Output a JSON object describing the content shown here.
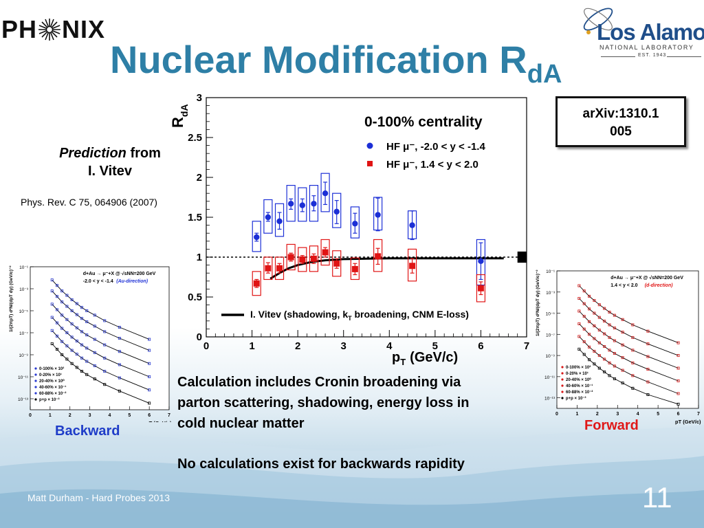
{
  "header": {
    "logo_left": {
      "text": "PHENIX"
    },
    "logo_right": {
      "name": "Los Alamos",
      "subtitle": "NATIONAL LABORATORY",
      "est": "EST. 1943"
    },
    "title": "Nuclear Modification R",
    "title_sub": "dA"
  },
  "prediction": {
    "italic": "Prediction",
    "rest": " from",
    "author": "I. Vitev"
  },
  "reference": "Phys. Rev. C 75, 064906 (2007)",
  "arxiv": {
    "line1": "arXiv:1310.1",
    "line2": "005"
  },
  "main_chart": {
    "ytitle": "R",
    "ytitle_sub": "dA",
    "xtitle": "p",
    "xtitle_sub": "T",
    "xtitle_unit": "(GeV/c)",
    "yticks": [
      "0",
      "0.5",
      "1",
      "1.5",
      "2",
      "2.5",
      "3"
    ],
    "xticks": [
      "0",
      "1",
      "2",
      "3",
      "4",
      "5",
      "6",
      "7"
    ],
    "legend_title": "0-100% centrality",
    "legend": [
      {
        "text": "HF μ⁻, -2.0 < y < -1.4",
        "color": "#1c2fd6"
      },
      {
        "text": "HF μ⁻,  1.4 < y < 2.0",
        "color": "#e01414"
      }
    ],
    "theory_label": "I. Vitev (shadowing, k",
    "theory_sub": "T",
    "theory_label_end": " broadening, CNM E-loss)"
  },
  "chart_data": [
    {
      "type": "scatter",
      "title": "0-100% centrality",
      "xlabel": "pT (GeV/c)",
      "ylabel": "RdA",
      "xlim": [
        0,
        7
      ],
      "ylim": [
        0,
        3
      ],
      "series": [
        {
          "name": "HF μ⁻, -2.0 < y < -1.4",
          "color": "#1c2fd6",
          "x": [
            1.1,
            1.35,
            1.6,
            1.85,
            2.1,
            2.35,
            2.6,
            2.85,
            3.25,
            3.75,
            4.5,
            6.0
          ],
          "y": [
            1.25,
            1.5,
            1.45,
            1.67,
            1.65,
            1.67,
            1.8,
            1.57,
            1.42,
            1.53,
            1.4,
            0.95
          ],
          "syst": [
            [
              1.07,
              1.45
            ],
            [
              1.3,
              1.72
            ],
            [
              1.26,
              1.67
            ],
            [
              1.45,
              1.9
            ],
            [
              1.45,
              1.87
            ],
            [
              1.45,
              1.9
            ],
            [
              1.57,
              2.05
            ],
            [
              1.37,
              1.8
            ],
            [
              1.24,
              1.63
            ],
            [
              1.34,
              1.75
            ],
            [
              1.23,
              1.58
            ],
            [
              0.65,
              1.22
            ]
          ],
          "stat": [
            [
              1.2,
              1.3
            ],
            [
              1.45,
              1.56
            ],
            [
              1.35,
              1.56
            ],
            [
              1.6,
              1.73
            ],
            [
              1.57,
              1.73
            ],
            [
              1.58,
              1.77
            ],
            [
              1.66,
              1.94
            ],
            [
              1.42,
              1.71
            ],
            [
              1.3,
              1.55
            ],
            [
              1.33,
              1.74
            ],
            [
              1.22,
              1.58
            ],
            [
              0.72,
              1.18
            ]
          ]
        },
        {
          "name": "HF μ⁻,  1.4 < y < 2.0",
          "color": "#e01414",
          "x": [
            1.1,
            1.35,
            1.6,
            1.85,
            2.1,
            2.35,
            2.6,
            2.85,
            3.25,
            3.75,
            4.5,
            6.0
          ],
          "y": [
            0.67,
            0.86,
            0.86,
            1.0,
            0.97,
            0.98,
            1.06,
            0.92,
            0.85,
            1.01,
            0.89,
            0.61
          ],
          "syst": [
            [
              0.52,
              0.82
            ],
            [
              0.72,
              1.0
            ],
            [
              0.72,
              1.0
            ],
            [
              0.84,
              1.16
            ],
            [
              0.82,
              1.12
            ],
            [
              0.82,
              1.14
            ],
            [
              0.9,
              1.22
            ],
            [
              0.76,
              1.08
            ],
            [
              0.72,
              0.99
            ],
            [
              0.82,
              1.22
            ],
            [
              0.7,
              1.1
            ],
            [
              0.44,
              0.78
            ]
          ],
          "stat": [
            [
              0.62,
              0.72
            ],
            [
              0.8,
              0.93
            ],
            [
              0.8,
              0.92
            ],
            [
              0.95,
              1.05
            ],
            [
              0.92,
              1.02
            ],
            [
              0.92,
              1.04
            ],
            [
              1.0,
              1.12
            ],
            [
              0.86,
              0.98
            ],
            [
              0.78,
              0.92
            ],
            [
              0.91,
              1.11
            ],
            [
              0.8,
              0.98
            ],
            [
              0.53,
              0.69
            ]
          ]
        }
      ],
      "theory": {
        "name": "I. Vitev (shadowing, kT broadening, CNM E-loss)",
        "x": [
          1.4,
          1.6,
          1.8,
          2.0,
          2.3,
          2.6,
          3.0,
          3.5,
          4.0,
          5.0,
          6.0,
          6.5
        ],
        "y": [
          0.73,
          0.8,
          0.86,
          0.9,
          0.94,
          0.96,
          0.975,
          0.98,
          0.985,
          0.985,
          0.985,
          0.985
        ]
      },
      "reference_line": 1.0
    },
    {
      "type": "scatter",
      "xlabel": "pT (GeV/c)",
      "ylabel": "1/(2πpT) d²N/(dpT dy) (GeV/c)⁻²",
      "xlim": [
        0,
        7
      ],
      "log_y": true,
      "ylim_exp": [
        -14,
        -1
      ],
      "xticks": [
        "0",
        "1",
        "2",
        "3",
        "4",
        "5",
        "6",
        "7"
      ],
      "yticks": [
        "10⁻¹",
        "10⁻³",
        "10⁻⁵",
        "10⁻⁷",
        "10⁻⁹",
        "10⁻¹¹",
        "10⁻¹³"
      ],
      "annotations": [
        "d+Au → μ⁻+X @ √sNN=200 GeV",
        "-2.0 < y < -1.4",
        "(Au-direction)"
      ],
      "legend": [
        "0-100% × 10²",
        "0-20% × 10¹",
        "20-40% × 10⁰",
        "40-60% × 10⁻¹",
        "60-88% × 10⁻²",
        "p+p × 10⁻³"
      ],
      "series_log10": [
        {
          "name": "0-100% × 10²",
          "x": [
            1.1,
            1.35,
            1.6,
            1.85,
            2.1,
            2.35,
            2.6,
            2.85,
            3.25,
            3.75,
            4.5,
            6.0
          ],
          "y": [
            -2.2,
            -2.7,
            -3.2,
            -3.6,
            -4.0,
            -4.35,
            -4.7,
            -5.0,
            -5.4,
            -5.9,
            -6.5,
            -7.6
          ]
        },
        {
          "name": "0-20% × 10¹",
          "x": [
            1.1,
            1.35,
            1.6,
            1.85,
            2.1,
            2.35,
            2.6,
            2.85,
            3.25,
            3.75,
            4.5,
            6.0
          ],
          "y": [
            -3.2,
            -3.7,
            -4.2,
            -4.6,
            -5.0,
            -5.35,
            -5.7,
            -6.0,
            -6.4,
            -6.9,
            -7.5,
            -8.6
          ]
        },
        {
          "name": "20-40% × 10⁰",
          "x": [
            1.1,
            1.35,
            1.6,
            1.85,
            2.1,
            2.35,
            2.6,
            2.85,
            3.25,
            3.75,
            4.5,
            6.0
          ],
          "y": [
            -4.4,
            -4.9,
            -5.4,
            -5.8,
            -6.2,
            -6.55,
            -6.9,
            -7.2,
            -7.6,
            -8.1,
            -8.7,
            -9.8
          ]
        },
        {
          "name": "40-60% × 10⁻¹",
          "x": [
            1.1,
            1.35,
            1.6,
            1.85,
            2.1,
            2.35,
            2.6,
            2.85,
            3.25,
            3.75,
            4.5,
            6.0
          ],
          "y": [
            -5.6,
            -6.1,
            -6.6,
            -7.0,
            -7.4,
            -7.75,
            -8.1,
            -8.4,
            -8.8,
            -9.3,
            -9.9,
            -11.0
          ]
        },
        {
          "name": "60-88% × 10⁻²",
          "x": [
            1.1,
            1.35,
            1.6,
            1.85,
            2.1,
            2.35,
            2.6,
            2.85,
            3.25,
            3.75,
            4.5,
            6.0
          ],
          "y": [
            -6.8,
            -7.3,
            -7.8,
            -8.2,
            -8.6,
            -8.95,
            -9.3,
            -9.6,
            -10.0,
            -10.5,
            -11.1,
            -12.2
          ]
        },
        {
          "name": "p+p × 10⁻³",
          "x": [
            1.1,
            1.35,
            1.6,
            1.85,
            2.1,
            2.35,
            2.6,
            2.85,
            3.25,
            3.75,
            4.5,
            6.0
          ],
          "y": [
            -8.0,
            -8.5,
            -9.0,
            -9.4,
            -9.8,
            -10.15,
            -10.5,
            -10.8,
            -11.2,
            -11.7,
            -12.3,
            -13.4
          ]
        }
      ]
    },
    {
      "type": "scatter",
      "xlabel": "pT (GeV/c)",
      "ylabel": "1/(2πpT) d²N/(dpT dy) (GeV/c)⁻²",
      "xlim": [
        0,
        7
      ],
      "log_y": true,
      "ylim_exp": [
        -14,
        -1
      ],
      "xticks": [
        "0",
        "1",
        "2",
        "3",
        "4",
        "5",
        "6",
        "7"
      ],
      "yticks": [
        "10⁻¹",
        "10⁻³",
        "10⁻⁵",
        "10⁻⁷",
        "10⁻⁹",
        "10⁻¹¹",
        "10⁻¹³"
      ],
      "annotations": [
        "d+Au → μ⁻+X @ √sNN=200 GeV",
        "1.4 < y < 2.0",
        "(d-direction)"
      ],
      "legend": [
        "0-100% × 10²",
        "0-20% × 10¹",
        "20-40% × 10⁰",
        "40-60% × 10⁻¹",
        "60-88% × 10⁻²",
        "p+p × 10⁻³"
      ],
      "series_log10": [
        {
          "name": "0-100% × 10²",
          "x": [
            1.1,
            1.35,
            1.6,
            1.85,
            2.1,
            2.35,
            2.6,
            2.85,
            3.25,
            3.75,
            4.5,
            6.0
          ],
          "y": [
            -2.4,
            -2.9,
            -3.4,
            -3.8,
            -4.2,
            -4.55,
            -4.9,
            -5.2,
            -5.6,
            -6.1,
            -6.7,
            -7.8
          ]
        },
        {
          "name": "0-20% × 10¹",
          "x": [
            1.1,
            1.35,
            1.6,
            1.85,
            2.1,
            2.35,
            2.6,
            2.85,
            3.25,
            3.75,
            4.5,
            6.0
          ],
          "y": [
            -3.6,
            -4.1,
            -4.6,
            -5.0,
            -5.4,
            -5.75,
            -6.1,
            -6.4,
            -6.8,
            -7.3,
            -7.9,
            -9.0
          ]
        },
        {
          "name": "20-40% × 10⁰",
          "x": [
            1.1,
            1.35,
            1.6,
            1.85,
            2.1,
            2.35,
            2.6,
            2.85,
            3.25,
            3.75,
            4.5,
            6.0
          ],
          "y": [
            -4.8,
            -5.3,
            -5.8,
            -6.2,
            -6.6,
            -6.95,
            -7.3,
            -7.6,
            -8.0,
            -8.5,
            -9.1,
            -10.2
          ]
        },
        {
          "name": "40-60% × 10⁻¹",
          "x": [
            1.1,
            1.35,
            1.6,
            1.85,
            2.1,
            2.35,
            2.6,
            2.85,
            3.25,
            3.75,
            4.5,
            6.0
          ],
          "y": [
            -6.0,
            -6.5,
            -7.0,
            -7.4,
            -7.8,
            -8.15,
            -8.5,
            -8.8,
            -9.2,
            -9.7,
            -10.3,
            -11.4
          ]
        },
        {
          "name": "60-88% × 10⁻²",
          "x": [
            1.1,
            1.35,
            1.6,
            1.85,
            2.1,
            2.35,
            2.6,
            2.85,
            3.25,
            3.75,
            4.5,
            6.0
          ],
          "y": [
            -7.2,
            -7.7,
            -8.2,
            -8.6,
            -9.0,
            -9.35,
            -9.7,
            -10.0,
            -10.4,
            -10.9,
            -11.5,
            -12.6
          ]
        },
        {
          "name": "p+p × 10⁻³",
          "x": [
            1.1,
            1.35,
            1.6,
            1.85,
            2.1,
            2.35,
            2.6,
            2.85,
            3.25,
            3.75,
            4.5,
            6.0
          ],
          "y": [
            -8.4,
            -8.9,
            -9.4,
            -9.8,
            -10.2,
            -10.55,
            -10.9,
            -11.2,
            -11.6,
            -12.1,
            -12.7,
            -13.6
          ]
        }
      ]
    }
  ],
  "backward_label": "Backward",
  "forward_label": "Forward",
  "calc_lines": [
    "Calculation includes Cronin broadening via",
    "parton scattering, shadowing, energy loss in",
    "cold nuclear matter"
  ],
  "nocalc": "No calculations exist for backwards rapidity",
  "footer": {
    "author": "Matt Durham - Hard Probes 2013",
    "slide_number": "11"
  },
  "colors": {
    "title": "#2e7fa6",
    "blue": "#1c2fd6",
    "red": "#e01414",
    "backward": "#1e3cc8",
    "forward": "#e01818"
  },
  "icons": {
    "phenix_star": "starburst-icon",
    "lanl_orbit": "orbit-icon"
  }
}
